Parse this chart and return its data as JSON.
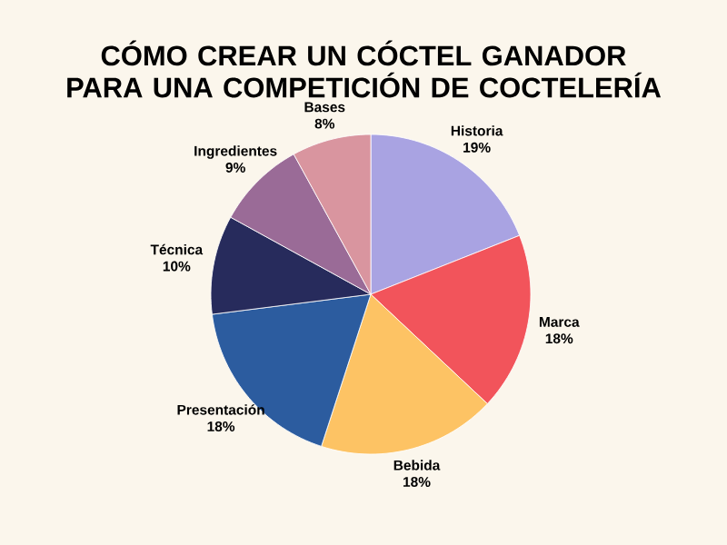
{
  "chart_data": {
    "type": "pie",
    "title": "CÓMO CREAR UN CÓCTEL GANADOR PARA UNA COMPETICIÓN DE COCTELERÍA",
    "categories": [
      "Historia",
      "Marca",
      "Bebida",
      "Presentación",
      "Técnica",
      "Ingredientes",
      "Bases"
    ],
    "values": [
      19,
      18,
      18,
      18,
      10,
      9,
      8
    ],
    "value_labels": [
      "19%",
      "18%",
      "18%",
      "18%",
      "10%",
      "9%",
      "8%"
    ],
    "colors": [
      "#a9a3e2",
      "#f2545b",
      "#fdc364",
      "#2c5c9f",
      "#272b5c",
      "#9a6b97",
      "#d9959f"
    ]
  }
}
